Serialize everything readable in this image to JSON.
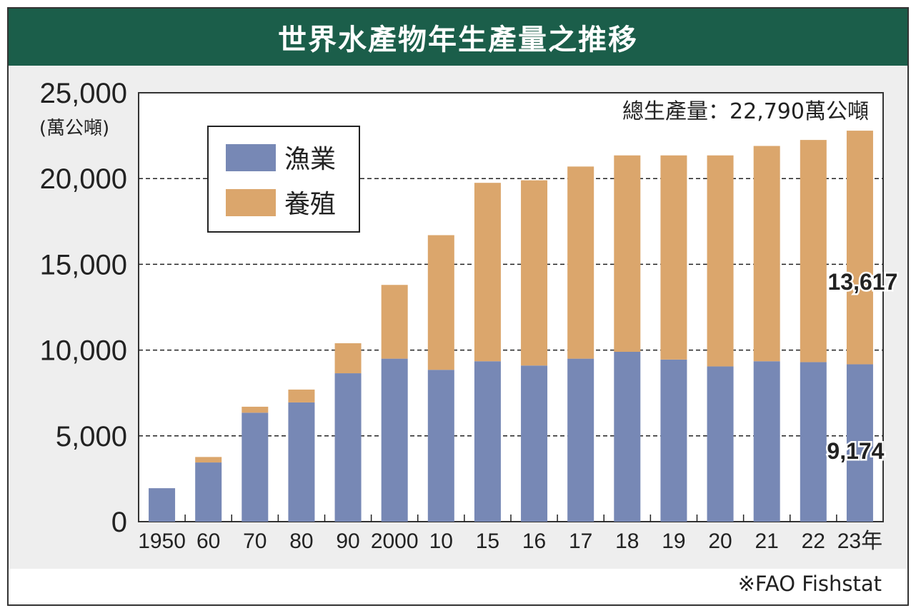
{
  "title": "世界水產物年生產量之推移",
  "source": "※FAO Fishstat",
  "colors": {
    "title_bg": "#1b5e4a",
    "fishery": "#7788b5",
    "aquaculture": "#dba66c",
    "frame": "#333333"
  },
  "chart_data": {
    "type": "bar",
    "stacked": true,
    "categories": [
      "1950",
      "60",
      "70",
      "80",
      "90",
      "2000",
      "10",
      "15",
      "16",
      "17",
      "18",
      "19",
      "20",
      "21",
      "22",
      "23年"
    ],
    "series": [
      {
        "name": "漁業",
        "values": [
          1950,
          3450,
          6350,
          6950,
          8650,
          9500,
          8850,
          9350,
          9100,
          9500,
          9900,
          9450,
          9050,
          9350,
          9300,
          9174
        ]
      },
      {
        "name": "養殖",
        "values": [
          0,
          320,
          350,
          750,
          1750,
          4300,
          7850,
          10400,
          10800,
          11200,
          11450,
          11900,
          12300,
          12550,
          12950,
          13617
        ]
      }
    ],
    "ylabel": "(萬公噸)",
    "ylim": [
      0,
      25000
    ],
    "yticks": [
      0,
      5000,
      10000,
      15000,
      20000,
      25000
    ],
    "ytick_labels": [
      "0",
      "5,000",
      "10,000",
      "15,000",
      "20,000",
      "25,000"
    ],
    "grid": true,
    "legend_position": "top-left",
    "annotations": {
      "total": "總生產量：22,790萬公噸",
      "aquaculture_last": "13,617",
      "fishery_last": "9,174"
    }
  }
}
